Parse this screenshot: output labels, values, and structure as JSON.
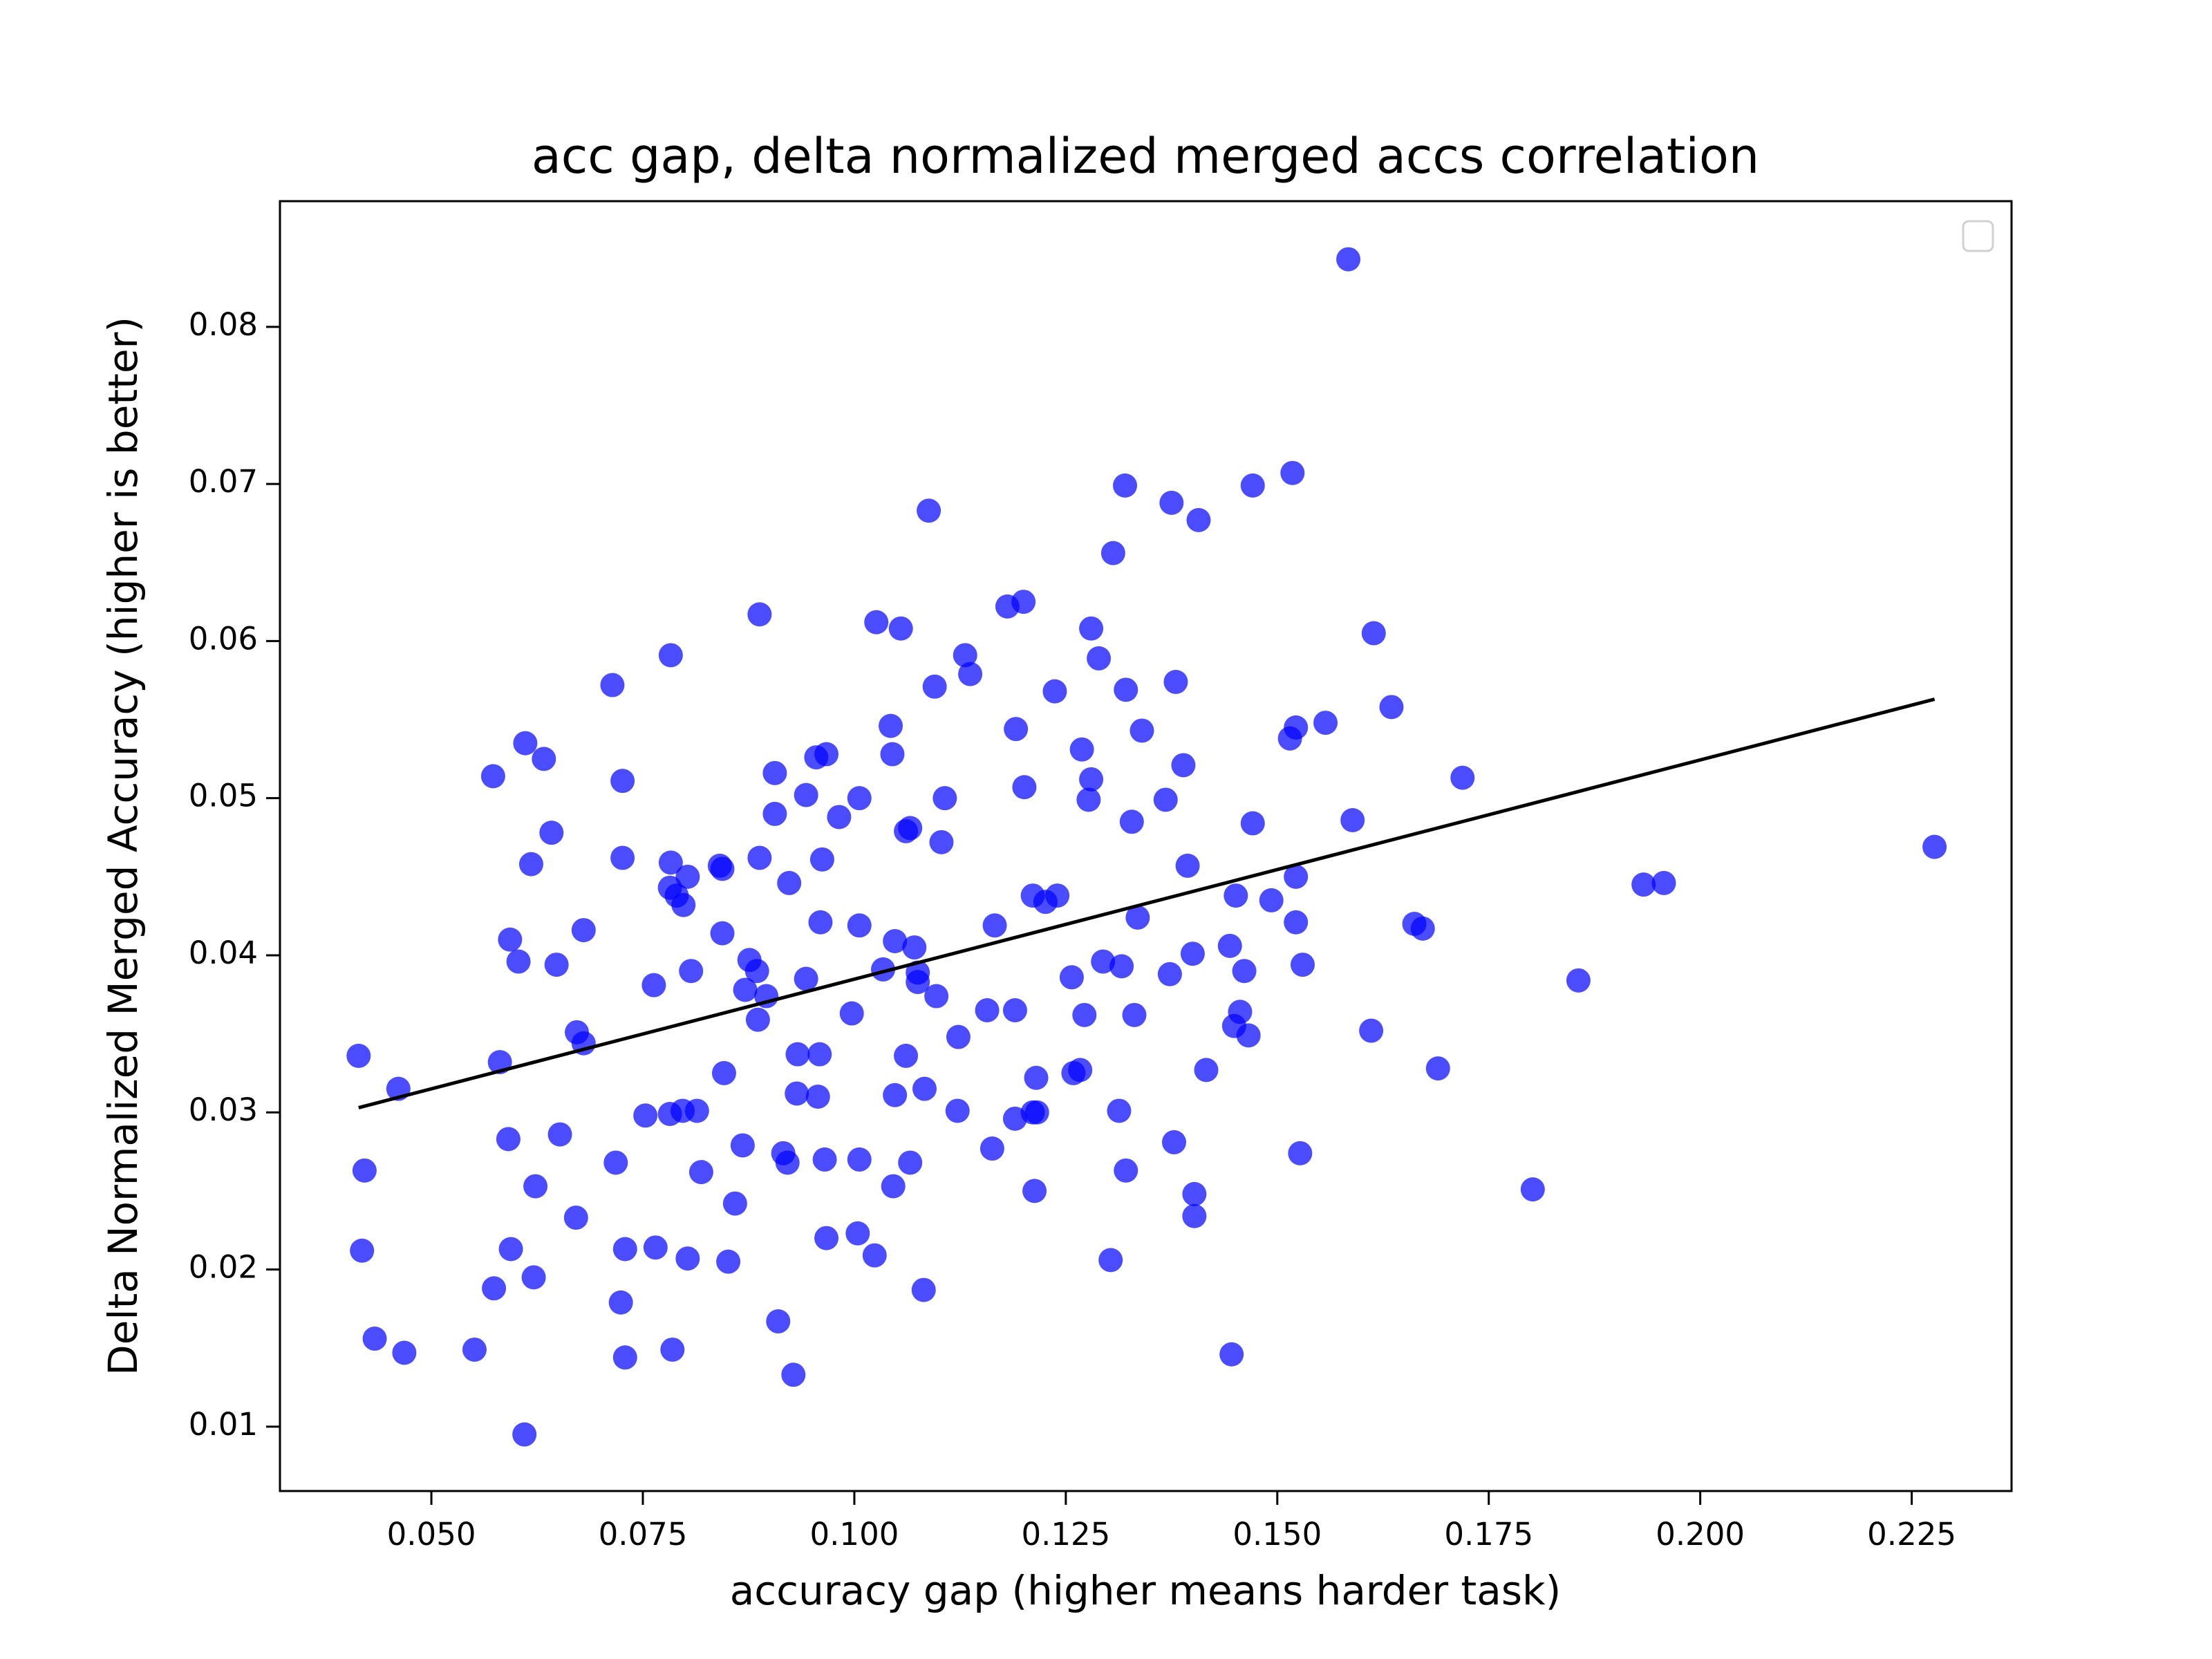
{
  "chart_data": {
    "type": "scatter",
    "title": "acc gap, delta normalized merged accs correlation",
    "x_label": "accuracy gap (higher means harder task)",
    "y_label": "Delta Normalized Merged Accuracy (higher is better)",
    "xlim": [
      0.0321,
      0.2368
    ],
    "ylim": [
      0.0059,
      0.088
    ],
    "xticks": [
      {
        "value": 0.05,
        "label": "0.050"
      },
      0.075,
      {
        "value": 0.1,
        "label": "0.100"
      },
      0.125,
      {
        "value": 0.15,
        "label": "0.150"
      },
      0.175,
      {
        "value": 0.2,
        "label": "0.200"
      },
      0.225
    ],
    "yticks": [
      0.01,
      0.02,
      0.03,
      0.04,
      0.05,
      0.06,
      0.07,
      0.08
    ],
    "legend": "upper right",
    "series": [
      {
        "color": "#0000ff",
        "x": [
          0.0414,
          0.0421,
          0.0418,
          0.0433,
          0.0461,
          0.0468,
          0.0551,
          0.0573,
          0.0581,
          0.0574,
          0.0593,
          0.0603,
          0.0591,
          0.0594,
          0.061,
          0.0611,
          0.0618,
          0.0623,
          0.0621,
          0.0633,
          0.0642,
          0.0648,
          0.0652,
          0.0671,
          0.0672,
          0.068,
          0.068,
          0.0714,
          0.0718,
          0.0726,
          0.0726,
          0.0724,
          0.0729,
          0.0729,
          0.0753,
          0.0763,
          0.0765,
          0.0783,
          0.0783,
          0.0782,
          0.079,
          0.0798,
          0.0803,
          0.0782,
          0.0797,
          0.0814,
          0.0807,
          0.0803,
          0.0785,
          0.0819,
          0.0841,
          0.0844,
          0.0844,
          0.0846,
          0.0851,
          0.0859,
          0.0868,
          0.0871,
          0.0876,
          0.0885,
          0.0886,
          0.0888,
          0.0888,
          0.0896,
          0.0906,
          0.0906,
          0.091,
          0.0916,
          0.0921,
          0.0923,
          0.0928,
          0.0933,
          0.0932,
          0.0943,
          0.0943,
          0.0955,
          0.0967,
          0.096,
          0.0959,
          0.0957,
          0.0962,
          0.0965,
          0.0967,
          0.0982,
          0.0997,
          0.1006,
          0.1006,
          0.1006,
          0.1004,
          0.1024,
          0.1026,
          0.1034,
          0.1043,
          0.1045,
          0.1048,
          0.1048,
          0.1046,
          0.1055,
          0.1061,
          0.1066,
          0.1061,
          0.1066,
          0.1071,
          0.1075,
          0.1075,
          0.1083,
          0.1082,
          0.1088,
          0.1095,
          0.1097,
          0.1103,
          0.1107,
          0.1123,
          0.1122,
          0.1131,
          0.1137,
          0.1157,
          0.1163,
          0.1166,
          0.1181,
          0.12,
          0.1191,
          0.1201,
          0.119,
          0.119,
          0.1211,
          0.1215,
          0.1211,
          0.1216,
          0.1213,
          0.1226,
          0.124,
          0.1237,
          0.1257,
          0.1259,
          0.1267,
          0.1269,
          0.1272,
          0.128,
          0.128,
          0.1277,
          0.1289,
          0.1294,
          0.1306,
          0.1303,
          0.1313,
          0.1316,
          0.132,
          0.1321,
          0.1321,
          0.1328,
          0.1331,
          0.1335,
          0.134,
          0.1368,
          0.1373,
          0.1375,
          0.1378,
          0.138,
          0.1389,
          0.1394,
          0.14,
          0.1402,
          0.1402,
          0.1407,
          0.1416,
          0.1444,
          0.1449,
          0.1451,
          0.1446,
          0.1456,
          0.1461,
          0.1466,
          0.1471,
          0.1471,
          0.1493,
          0.1515,
          0.1522,
          0.1518,
          0.1522,
          0.1522,
          0.1527,
          0.153,
          0.1557,
          0.1584,
          0.1589,
          0.1611,
          0.1614,
          0.1635,
          0.1662,
          0.1672,
          0.169,
          0.1719,
          0.1802,
          0.1856,
          0.1933,
          0.1957,
          0.2277
        ],
        "values": [
          0.0336,
          0.0263,
          0.0212,
          0.0156,
          0.0315,
          0.0147,
          0.0149,
          0.0514,
          0.0332,
          0.0188,
          0.041,
          0.0396,
          0.0283,
          0.0213,
          0.0095,
          0.0535,
          0.0458,
          0.0253,
          0.0195,
          0.0525,
          0.0478,
          0.0394,
          0.0286,
          0.0233,
          0.0351,
          0.0416,
          0.0344,
          0.0572,
          0.0268,
          0.0511,
          0.0462,
          0.0179,
          0.0213,
          0.0144,
          0.0298,
          0.0381,
          0.0214,
          0.0591,
          0.0459,
          0.0443,
          0.0438,
          0.0432,
          0.045,
          0.0299,
          0.0301,
          0.0301,
          0.039,
          0.0207,
          0.0149,
          0.0262,
          0.0457,
          0.0455,
          0.0414,
          0.0325,
          0.0205,
          0.0242,
          0.0279,
          0.0378,
          0.0397,
          0.039,
          0.0359,
          0.0617,
          0.0462,
          0.0374,
          0.0516,
          0.049,
          0.0167,
          0.0274,
          0.0268,
          0.0446,
          0.0133,
          0.0337,
          0.0312,
          0.0502,
          0.0385,
          0.0526,
          0.0528,
          0.0421,
          0.0337,
          0.031,
          0.0461,
          0.027,
          0.022,
          0.0488,
          0.0363,
          0.05,
          0.0419,
          0.027,
          0.0223,
          0.0209,
          0.0612,
          0.0391,
          0.0546,
          0.0528,
          0.0409,
          0.0311,
          0.0253,
          0.0608,
          0.0479,
          0.0481,
          0.0336,
          0.0268,
          0.0405,
          0.0389,
          0.0383,
          0.0315,
          0.0187,
          0.0683,
          0.0571,
          0.0374,
          0.0472,
          0.05,
          0.0348,
          0.0301,
          0.0591,
          0.0579,
          0.0365,
          0.0277,
          0.0419,
          0.0622,
          0.0625,
          0.0544,
          0.0507,
          0.0365,
          0.0296,
          0.0438,
          0.0322,
          0.03,
          0.03,
          0.025,
          0.0434,
          0.0438,
          0.0568,
          0.0386,
          0.0325,
          0.0327,
          0.0531,
          0.0362,
          0.0608,
          0.0512,
          0.0499,
          0.0589,
          0.0396,
          0.0656,
          0.0206,
          0.0301,
          0.0393,
          0.0699,
          0.0569,
          0.0263,
          0.0485,
          0.0362,
          0.0424,
          0.0543,
          0.0499,
          0.0388,
          0.0688,
          0.0281,
          0.0574,
          0.0521,
          0.0457,
          0.0401,
          0.0248,
          0.0234,
          0.0677,
          0.0327,
          0.0406,
          0.0355,
          0.0438,
          0.0146,
          0.0364,
          0.039,
          0.0349,
          0.0699,
          0.0484,
          0.0435,
          0.0538,
          0.0545,
          0.0707,
          0.045,
          0.0421,
          0.0274,
          0.0394,
          0.0548,
          0.0843,
          0.0486,
          0.0352,
          0.0605,
          0.0558,
          0.042,
          0.0417,
          0.0328,
          0.0513,
          0.0251,
          0.0384,
          0.0445,
          0.0446,
          0.0469
        ]
      }
    ],
    "trend_line": {
      "color": "#000000",
      "x": [
        0.0414,
        0.2277
      ],
      "values": [
        0.0303,
        0.0563
      ]
    }
  }
}
